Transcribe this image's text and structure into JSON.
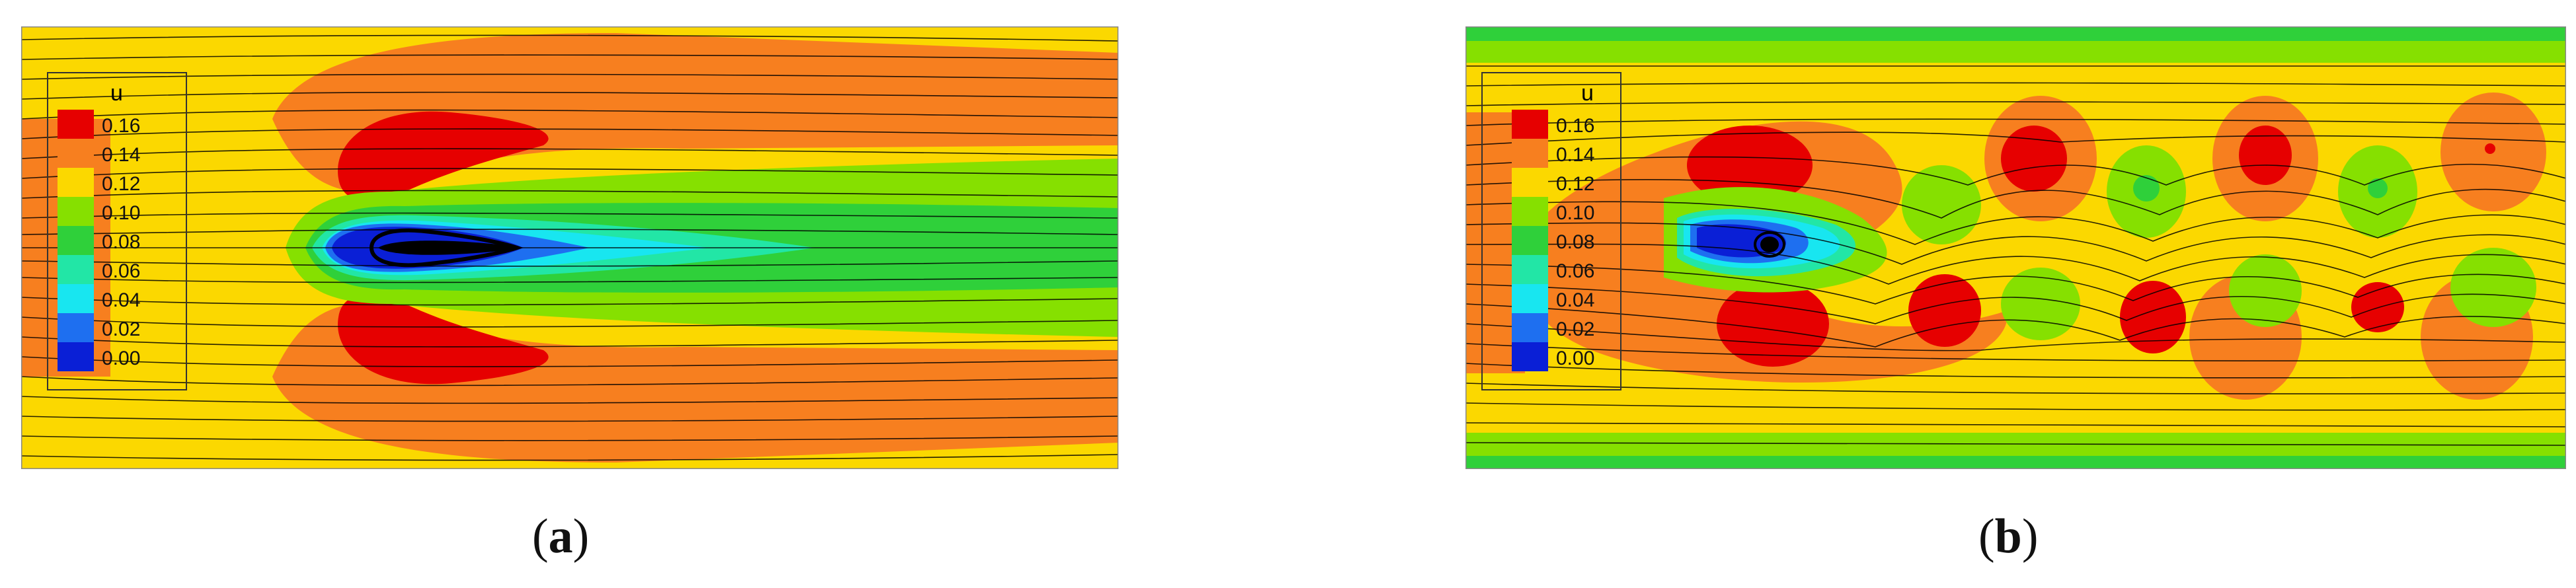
{
  "colorbar": {
    "title": "u",
    "levels": [
      "0.16",
      "0.14",
      "0.12",
      "0.10",
      "0.08",
      "0.06",
      "0.04",
      "0.02",
      "0.00"
    ],
    "colors": [
      "#e60000",
      "#f77f1f",
      "#fbd800",
      "#86e000",
      "#2fd03a",
      "#22e6a6",
      "#18e6f0",
      "#1e6ff0",
      "#0a1fd6"
    ]
  },
  "panels": [
    {
      "label": "a",
      "caption_open": "(",
      "caption_close": ")",
      "flow": "steady-symmetric-wake"
    },
    {
      "label": "b",
      "caption_open": "(",
      "caption_close": ")",
      "flow": "vortex-shedding-wake"
    }
  ]
}
